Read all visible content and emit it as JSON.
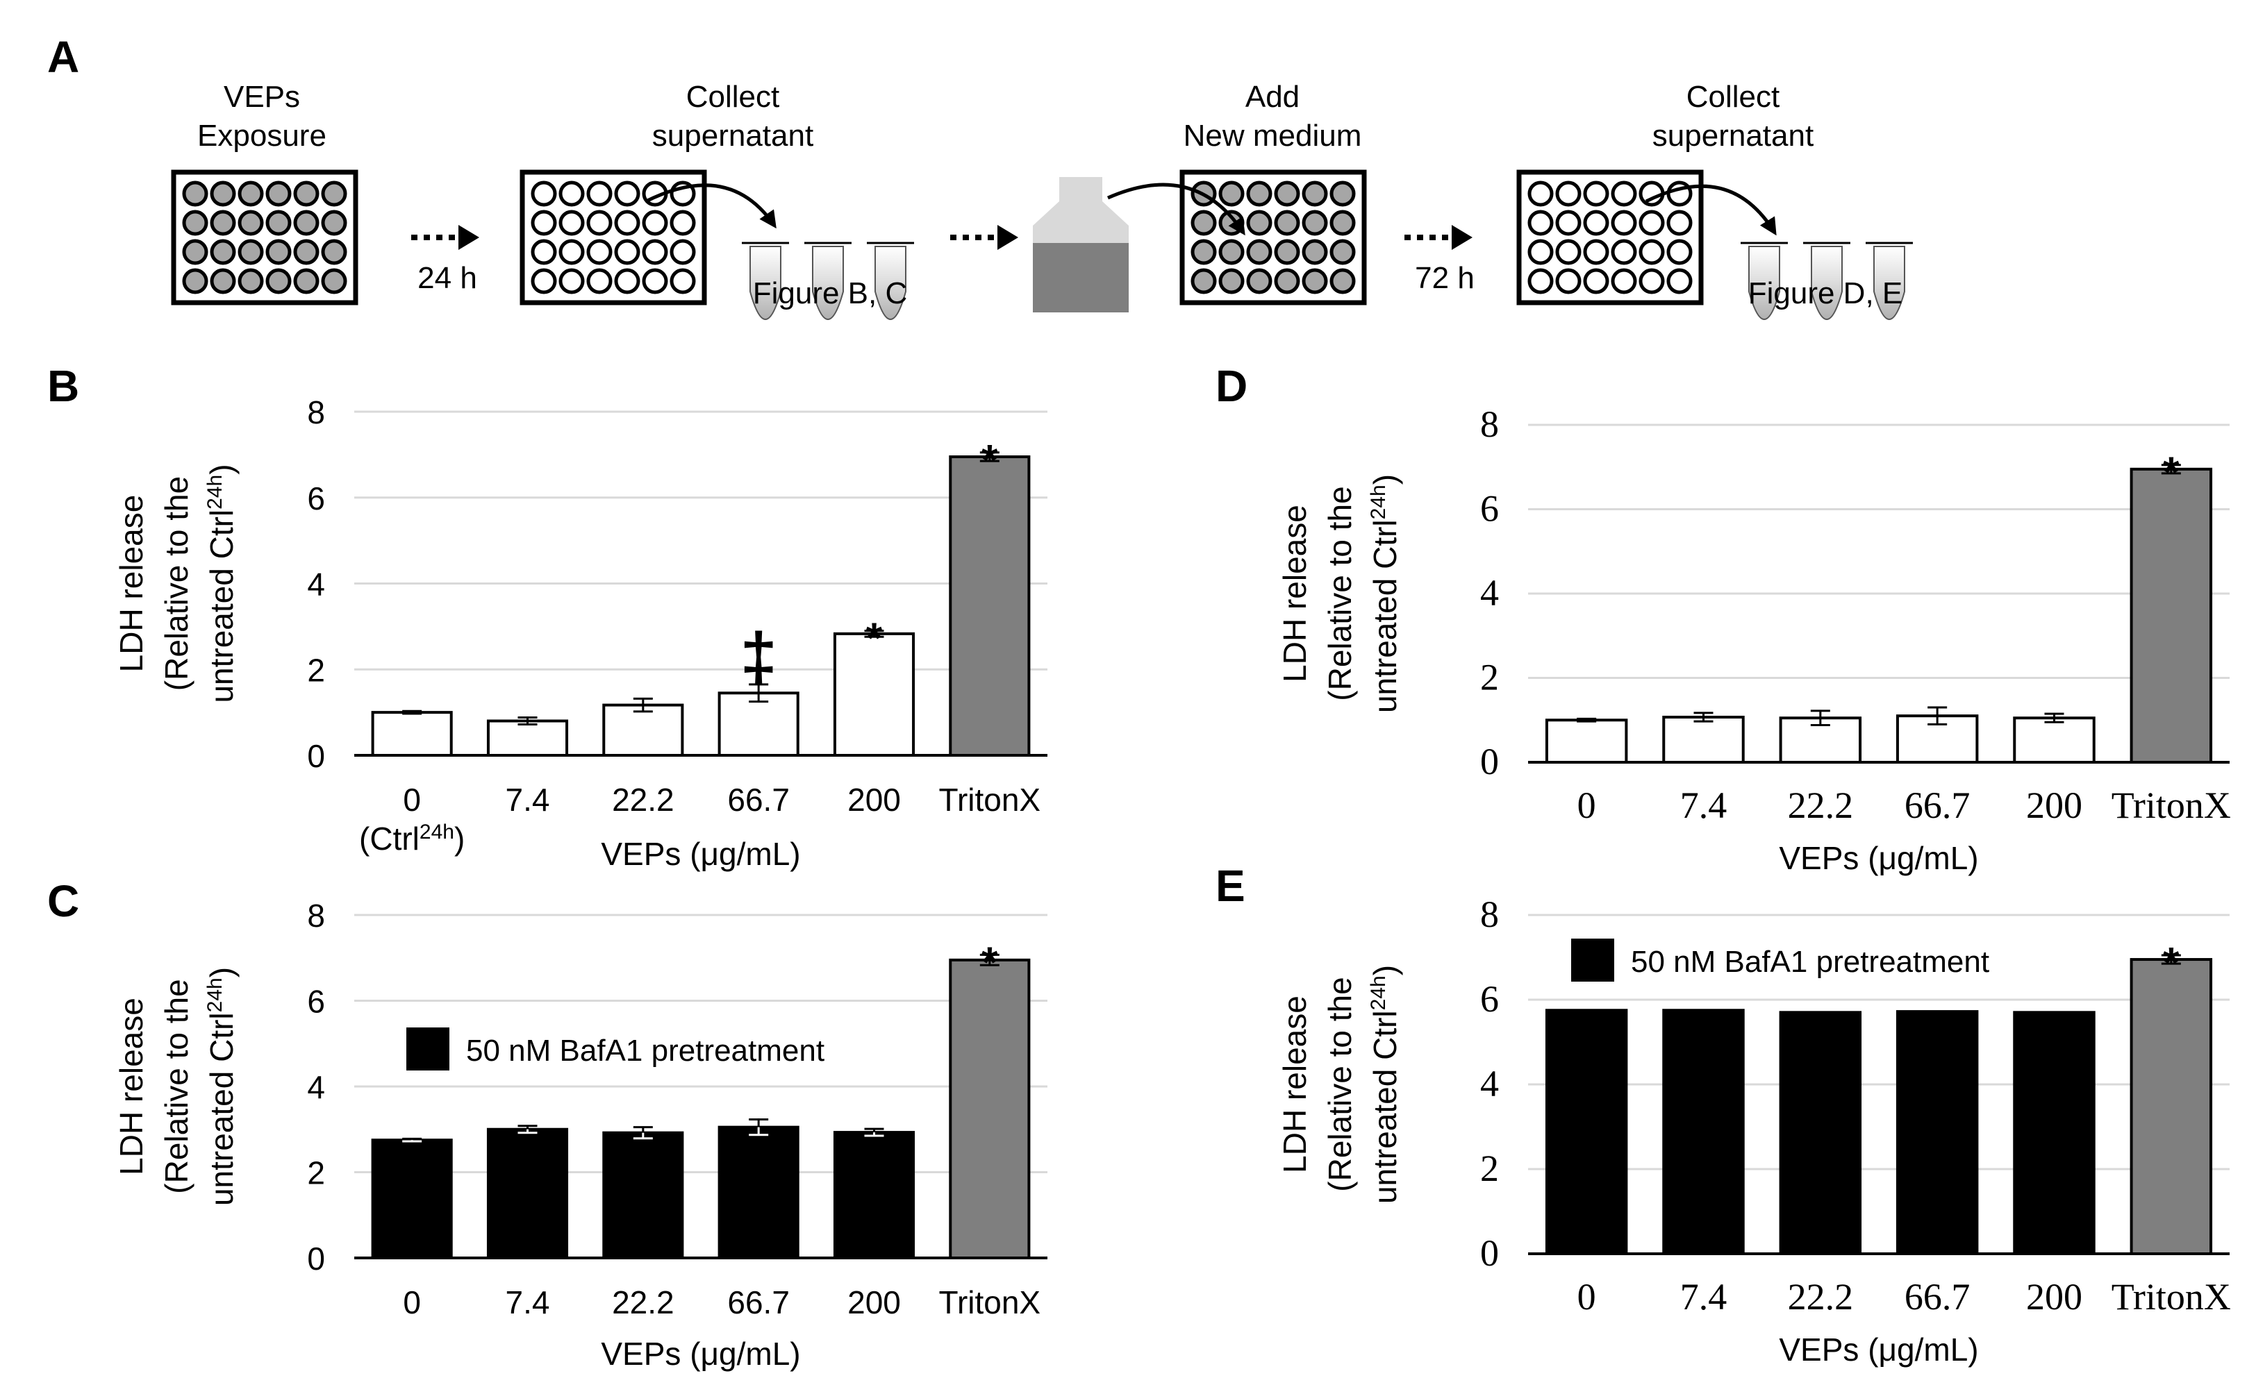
{
  "panel_labels": {
    "a": "A",
    "b": "B",
    "c": "C",
    "d": "D",
    "e": "E"
  },
  "schematic": {
    "step1": {
      "line1": "VEPs",
      "line2": "Exposure"
    },
    "step2": {
      "line1": "Collect",
      "line2": "supernatant"
    },
    "step3": {
      "line1": "Add",
      "line2": "New medium"
    },
    "step4": {
      "line1": "Collect",
      "line2": "supernatant"
    },
    "time1": "24 h",
    "time2": "72 h",
    "tubes1_label": "Figure B, C",
    "tubes2_label": "Figure D, E"
  },
  "colors": {
    "white_bar": "#ffffff",
    "black_bar": "#000000",
    "gray_bar": "#7f7f7f",
    "grid": "#d9d9d9",
    "well_gray": "#a6a6a6"
  },
  "chart_data": [
    {
      "id": "B",
      "type": "bar",
      "categories": [
        "0",
        "7.4",
        "22.2",
        "66.7",
        "200",
        "TritonX"
      ],
      "sub_label": "(Ctrl",
      "sub_label_sup": "24h",
      "sub_label_end": ")",
      "values": [
        1.0,
        0.8,
        1.17,
        1.45,
        2.83,
        6.95
      ],
      "errors": [
        0.03,
        0.08,
        0.15,
        0.2,
        0.07,
        0.1
      ],
      "fills": [
        "white",
        "white",
        "white",
        "white",
        "white",
        "gray"
      ],
      "markers": [
        "",
        "",
        "",
        "‡",
        "*",
        "*"
      ],
      "ylim": [
        0,
        8
      ],
      "yticks": [
        "0",
        "2",
        "4",
        "6",
        "8"
      ],
      "ylabel_line1": "LDH release",
      "ylabel_line2a": "(Relative to the",
      "ylabel_line2b": "untreated Ctrl",
      "ylabel_sup": "24h",
      "ylabel_end": ")",
      "xlabel": "VEPs (μg/mL)",
      "legend": ""
    },
    {
      "id": "C",
      "type": "bar",
      "categories": [
        "0",
        "7.4",
        "22.2",
        "66.7",
        "200",
        "TritonX"
      ],
      "values": [
        2.75,
        3.0,
        2.92,
        3.05,
        2.93,
        6.95
      ],
      "errors": [
        0.03,
        0.08,
        0.13,
        0.18,
        0.08,
        0.12
      ],
      "fills": [
        "black",
        "black",
        "black",
        "black",
        "black",
        "gray"
      ],
      "markers": [
        "",
        "",
        "",
        "",
        "",
        "*"
      ],
      "ylim": [
        0,
        8
      ],
      "yticks": [
        "0",
        "2",
        "4",
        "6",
        "8"
      ],
      "ylabel_line1": "LDH release",
      "ylabel_line2a": "(Relative to the",
      "ylabel_line2b": "untreated Ctrl",
      "ylabel_sup": "24h",
      "ylabel_end": ")",
      "xlabel": "VEPs (μg/mL)",
      "legend": "50 nM BafA1 pretreatment"
    },
    {
      "id": "D",
      "type": "bar",
      "categories": [
        "0",
        "7.4",
        "22.2",
        "66.7",
        "200",
        "TritonX"
      ],
      "values": [
        1.0,
        1.07,
        1.05,
        1.1,
        1.05,
        6.95
      ],
      "errors": [
        0.03,
        0.1,
        0.17,
        0.2,
        0.1,
        0.1
      ],
      "fills": [
        "white",
        "white",
        "white",
        "white",
        "white",
        "gray"
      ],
      "markers": [
        "",
        "",
        "",
        "",
        "",
        "*"
      ],
      "ylim": [
        0,
        8
      ],
      "yticks": [
        "0",
        "2",
        "4",
        "6",
        "8"
      ],
      "ylabel_line1": "LDH release",
      "ylabel_line2a": "(Relative to the",
      "ylabel_line2b": "untreated Ctrl",
      "ylabel_sup": "24h",
      "ylabel_end": ")",
      "xlabel": "VEPs (μg/mL)",
      "legend": ""
    },
    {
      "id": "E",
      "type": "bar",
      "categories": [
        "0",
        "7.4",
        "22.2",
        "66.7",
        "200",
        "TritonX"
      ],
      "values": [
        5.75,
        5.75,
        5.7,
        5.72,
        5.7,
        6.95
      ],
      "errors": [
        0,
        0,
        0,
        0,
        0,
        0.1
      ],
      "fills": [
        "black",
        "black",
        "black",
        "black",
        "black",
        "gray"
      ],
      "markers": [
        "",
        "",
        "",
        "",
        "",
        "*"
      ],
      "ylim": [
        0,
        8
      ],
      "yticks": [
        "0",
        "2",
        "4",
        "6",
        "8"
      ],
      "ylabel_line1": "LDH release",
      "ylabel_line2a": "(Relative to the",
      "ylabel_line2b": "untreated Ctrl",
      "ylabel_sup": "24h",
      "ylabel_end": ")",
      "xlabel": "VEPs (μg/mL)",
      "legend": "50 nM BafA1 pretreatment"
    }
  ]
}
